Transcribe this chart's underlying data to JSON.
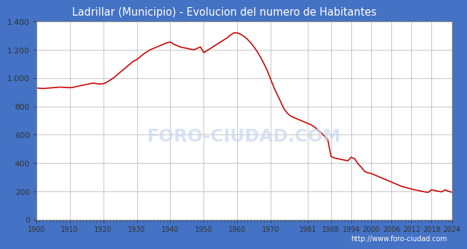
{
  "title": "Ladrillar (Municipio) - Evolucion del numero de Habitantes",
  "title_bg_color": "#4472c4",
  "title_text_color": "white",
  "plot_bg_color": "#e8e8e8",
  "fig_bg_color": "#4472c4",
  "outer_bg_color": "#ffffff",
  "line_color": "#cc0000",
  "line_width": 1.2,
  "watermark": "FORO-CIUDAD.COM",
  "url": "http://www.foro-ciudad.com",
  "xlim": [
    1900,
    2024
  ],
  "ylim": [
    0,
    1400
  ],
  "yticks": [
    0,
    200,
    400,
    600,
    800,
    1000,
    1200,
    1400
  ],
  "ytick_labels": [
    "0",
    "200",
    "400",
    "600",
    "800",
    "1.000",
    "1.200",
    "1.400"
  ],
  "xticks": [
    1900,
    1910,
    1920,
    1930,
    1940,
    1950,
    1960,
    1970,
    1981,
    1988,
    1994,
    2000,
    2006,
    2012,
    2018,
    2024
  ],
  "years": [
    1900,
    1901,
    1902,
    1903,
    1904,
    1905,
    1906,
    1907,
    1908,
    1909,
    1910,
    1911,
    1912,
    1913,
    1914,
    1915,
    1916,
    1917,
    1918,
    1919,
    1920,
    1921,
    1922,
    1923,
    1924,
    1925,
    1926,
    1927,
    1928,
    1929,
    1930,
    1931,
    1932,
    1933,
    1934,
    1935,
    1936,
    1937,
    1938,
    1939,
    1940,
    1941,
    1942,
    1943,
    1944,
    1945,
    1946,
    1947,
    1948,
    1949,
    1950,
    1951,
    1952,
    1953,
    1954,
    1955,
    1956,
    1957,
    1958,
    1959,
    1960,
    1961,
    1962,
    1963,
    1964,
    1965,
    1966,
    1967,
    1968,
    1969,
    1970,
    1971,
    1972,
    1973,
    1974,
    1975,
    1976,
    1977,
    1978,
    1979,
    1980,
    1981,
    1982,
    1983,
    1984,
    1985,
    1986,
    1987,
    1988,
    1989,
    1990,
    1991,
    1992,
    1993,
    1994,
    1995,
    1996,
    1997,
    1998,
    1999,
    2000,
    2001,
    2002,
    2003,
    2004,
    2005,
    2006,
    2007,
    2008,
    2009,
    2010,
    2011,
    2012,
    2013,
    2014,
    2015,
    2016,
    2017,
    2018,
    2019,
    2020,
    2021,
    2022,
    2023,
    2024
  ],
  "population": [
    930,
    928,
    926,
    928,
    930,
    932,
    934,
    936,
    935,
    933,
    932,
    934,
    940,
    945,
    950,
    955,
    960,
    965,
    960,
    958,
    960,
    970,
    985,
    1000,
    1020,
    1040,
    1060,
    1080,
    1100,
    1120,
    1130,
    1150,
    1170,
    1185,
    1200,
    1210,
    1220,
    1230,
    1240,
    1250,
    1255,
    1240,
    1230,
    1220,
    1215,
    1210,
    1205,
    1200,
    1210,
    1220,
    1180,
    1195,
    1210,
    1225,
    1240,
    1255,
    1270,
    1285,
    1305,
    1320,
    1320,
    1310,
    1295,
    1275,
    1250,
    1220,
    1185,
    1145,
    1100,
    1050,
    990,
    930,
    880,
    830,
    780,
    750,
    730,
    720,
    710,
    700,
    690,
    680,
    670,
    655,
    635,
    615,
    590,
    565,
    445,
    435,
    430,
    425,
    420,
    415,
    440,
    430,
    395,
    370,
    340,
    330,
    325,
    315,
    305,
    295,
    285,
    275,
    265,
    255,
    245,
    235,
    228,
    222,
    215,
    210,
    205,
    200,
    195,
    192,
    210,
    205,
    200,
    195,
    210,
    200,
    193
  ]
}
